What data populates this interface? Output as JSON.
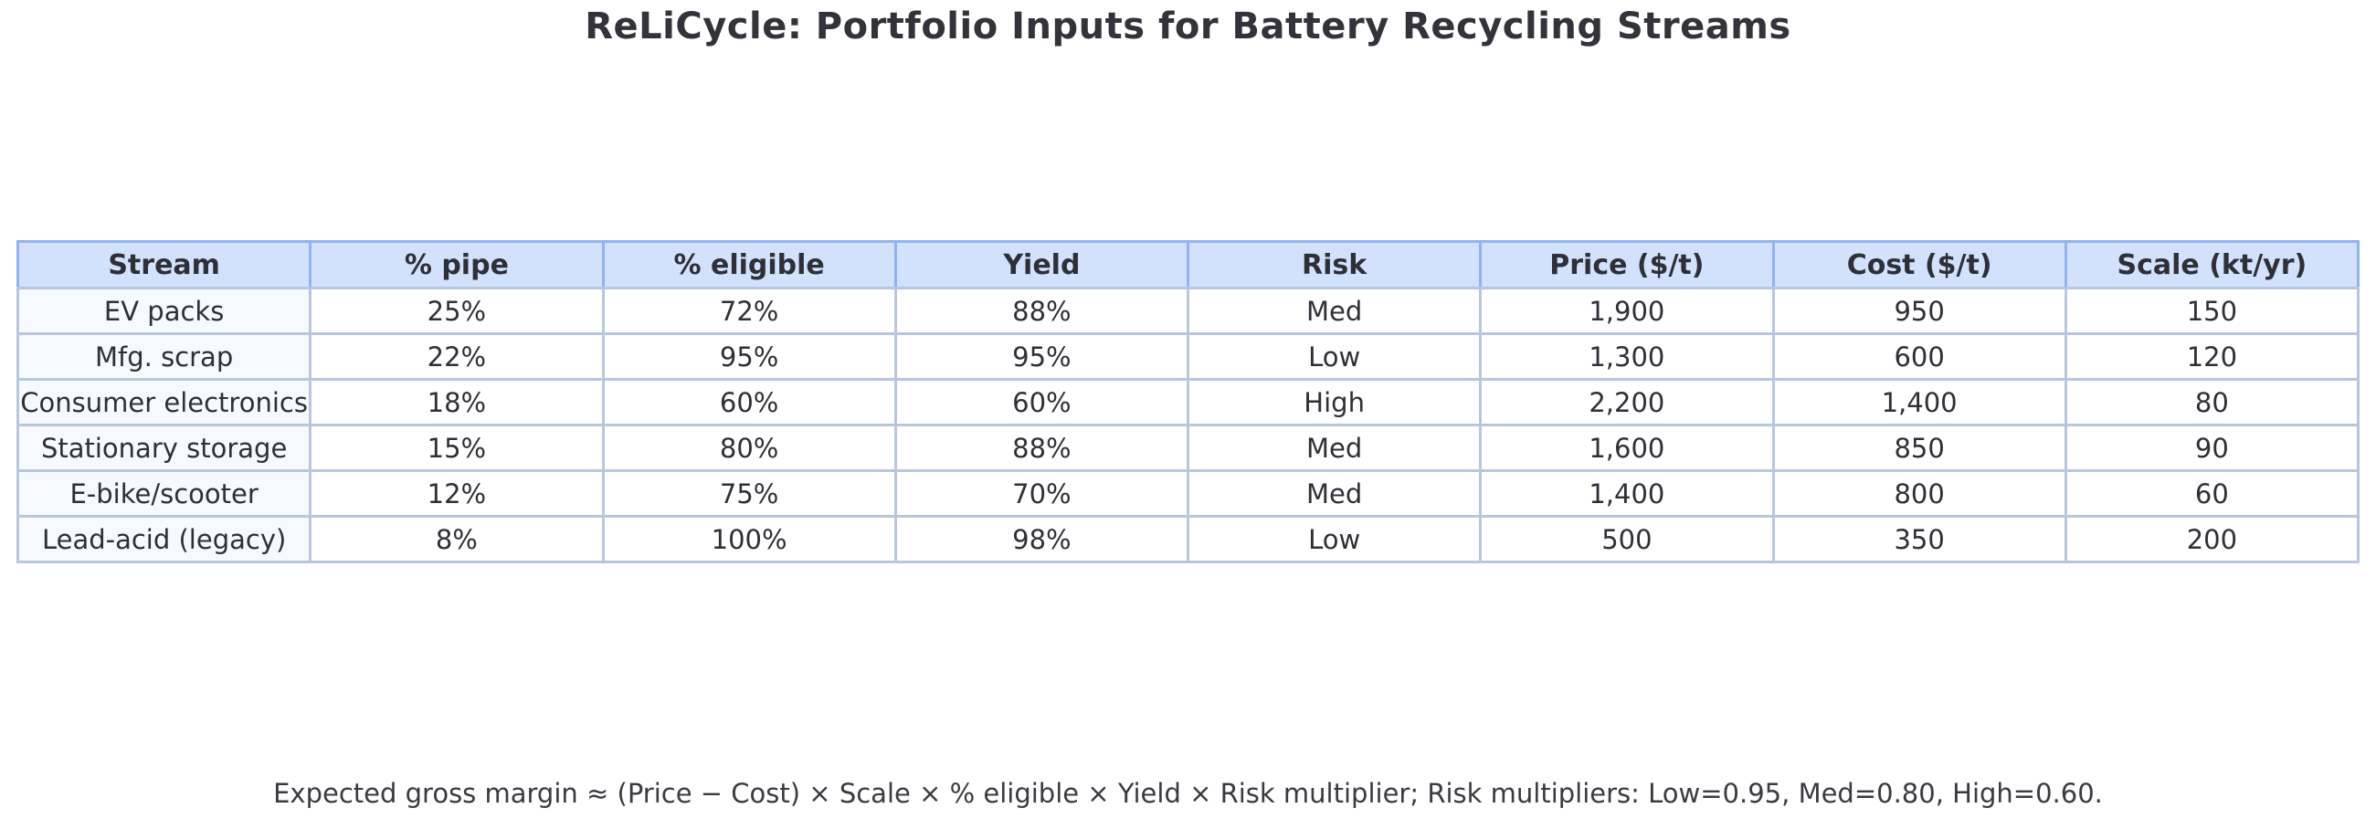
{
  "title": "ReLiCycle: Portfolio Inputs for Battery Recycling Streams",
  "footnote": "Expected gross margin ≈ (Price − Cost) × Scale × % eligible × Yield × Risk multiplier; Risk multipliers: Low=0.95, Med=0.80, High=0.60.",
  "colors": {
    "header_bg": "#d2e1fc",
    "header_border": "#90b3f2",
    "body_border": "#b9c7de",
    "stream_col_bg": "#f6f9fd",
    "text": "#2f2f38",
    "title_text": "#33333b",
    "page_bg": "#ffffff"
  },
  "chart_data": {
    "type": "table",
    "title": "ReLiCycle: Portfolio Inputs for Battery Recycling Streams",
    "columns": [
      "Stream",
      "% pipe",
      "% eligible",
      "Yield",
      "Risk",
      "Price ($/t)",
      "Cost ($/t)",
      "Scale (kt/yr)"
    ],
    "rows": [
      [
        "EV packs",
        "25%",
        "72%",
        "88%",
        "Med",
        "1,900",
        "950",
        "150"
      ],
      [
        "Mfg. scrap",
        "22%",
        "95%",
        "95%",
        "Low",
        "1,300",
        "600",
        "120"
      ],
      [
        "Consumer electronics",
        "18%",
        "60%",
        "60%",
        "High",
        "2,200",
        "1,400",
        "80"
      ],
      [
        "Stationary storage",
        "15%",
        "80%",
        "88%",
        "Med",
        "1,600",
        "850",
        "90"
      ],
      [
        "E-bike/scooter",
        "12%",
        "75%",
        "70%",
        "Med",
        "1,400",
        "800",
        "60"
      ],
      [
        "Lead-acid (legacy)",
        "8%",
        "100%",
        "98%",
        "Low",
        "500",
        "350",
        "200"
      ]
    ],
    "risk_multipliers": {
      "Low": 0.95,
      "Med": 0.8,
      "High": 0.6
    },
    "layout_hints": {
      "header_style": "light-blue band, bold centered text",
      "first_column_style": "tinted light blue-white",
      "grid": "on, all cells bordered",
      "alignment": "all cells centered"
    }
  }
}
